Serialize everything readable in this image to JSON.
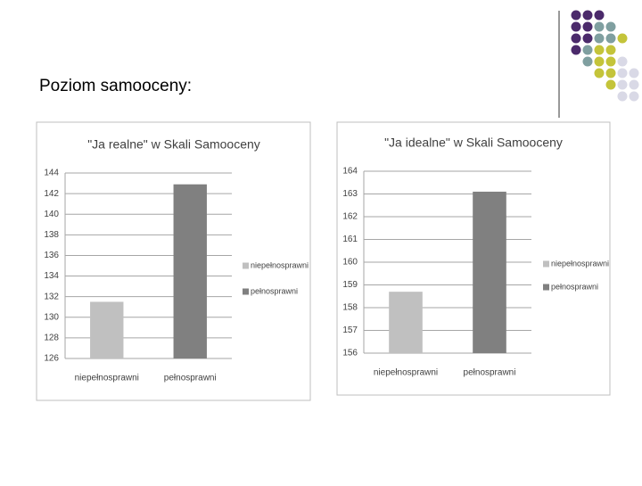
{
  "slide_title": "Poziom samooceny:",
  "chart_data": [
    {
      "type": "bar",
      "title": "\"Ja realne\" w Skali Samooceny",
      "categories": [
        "niepełnosprawni",
        "pełnosprawni"
      ],
      "series": [
        {
          "name": "niepełnosprawni",
          "color": "#c0c0c0",
          "values": [
            131.5,
            null
          ]
        },
        {
          "name": "pełnosprawni",
          "color": "#808080",
          "values": [
            null,
            142.9
          ]
        }
      ],
      "ylim": [
        126,
        144
      ],
      "yticks": [
        126,
        128,
        130,
        132,
        134,
        136,
        138,
        140,
        142,
        144
      ],
      "grid": true,
      "legend": "right"
    },
    {
      "type": "bar",
      "title": "\"Ja idealne\" w Skali Samooceny",
      "categories": [
        "niepełnosprawni",
        "pełnosprawni"
      ],
      "series": [
        {
          "name": "niepełnosprawni",
          "color": "#c0c0c0",
          "values": [
            158.7,
            null
          ]
        },
        {
          "name": "pełnosprawni",
          "color": "#808080",
          "values": [
            null,
            163.1
          ]
        }
      ],
      "ylim": [
        156,
        164
      ],
      "yticks": [
        156,
        157,
        158,
        159,
        160,
        161,
        162,
        163,
        164
      ],
      "grid": true,
      "legend": "right"
    }
  ]
}
